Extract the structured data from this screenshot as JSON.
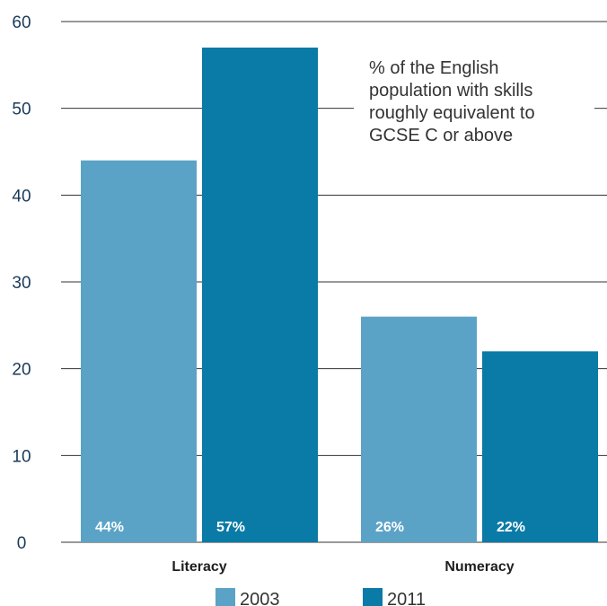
{
  "chart_data": {
    "type": "bar",
    "title": "",
    "xlabel": "",
    "ylabel": "",
    "ylim": [
      0,
      60
    ],
    "yticks": [
      0,
      10,
      20,
      30,
      40,
      50,
      60
    ],
    "grid": true,
    "categories": [
      "Literacy",
      "Numeracy"
    ],
    "series": [
      {
        "name": "2003",
        "values": [
          44,
          26
        ],
        "labels": [
          "44%",
          "26%"
        ],
        "color": "#5ba3c6"
      },
      {
        "name": "2011",
        "values": [
          57,
          22
        ],
        "labels": [
          "57%",
          "22%"
        ],
        "color": "#0a7aa6"
      }
    ],
    "annotation": {
      "lines": [
        "% of the English",
        "population with skills",
        "roughly equivalent to",
        "GCSE C or above"
      ]
    },
    "legend_position": "bottom"
  }
}
